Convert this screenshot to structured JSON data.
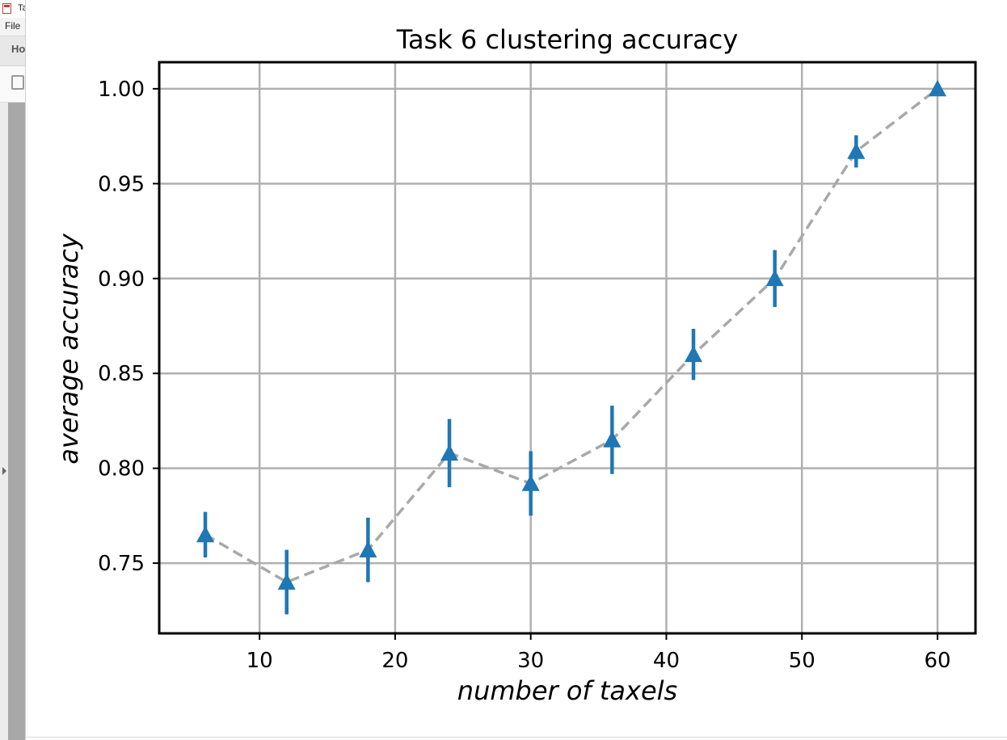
{
  "host": {
    "window_title": "Ta",
    "menu_file": "File",
    "ribbon_tab": "Ho"
  },
  "chart_data": {
    "type": "line",
    "title": "Task 6 clustering accuracy",
    "xlabel": "number of taxels",
    "ylabel": "average accuracy",
    "xlim": [
      2.6,
      62.8
    ],
    "ylim": [
      0.713,
      1.014
    ],
    "xticks": [
      10,
      20,
      30,
      40,
      50,
      60
    ],
    "yticks": [
      0.75,
      0.8,
      0.85,
      0.9,
      0.95,
      1.0
    ],
    "xtick_labels": [
      "10",
      "20",
      "30",
      "40",
      "50",
      "60"
    ],
    "ytick_labels": [
      "0.75",
      "0.80",
      "0.85",
      "0.90",
      "0.95",
      "1.00"
    ],
    "grid": true,
    "series": [
      {
        "x": [
          6,
          12,
          18,
          24,
          30,
          36,
          42,
          48,
          54,
          60
        ],
        "y": [
          0.765,
          0.74,
          0.757,
          0.808,
          0.792,
          0.815,
          0.86,
          0.9,
          0.967,
          1.0
        ],
        "yerr": [
          0.012,
          0.017,
          0.017,
          0.018,
          0.017,
          0.018,
          0.0135,
          0.015,
          0.0085,
          0.0
        ],
        "marker": "triangle-up",
        "marker_color": "#1f77b4",
        "line_color": "#a9a9a9",
        "line_style": "dashed"
      }
    ]
  }
}
